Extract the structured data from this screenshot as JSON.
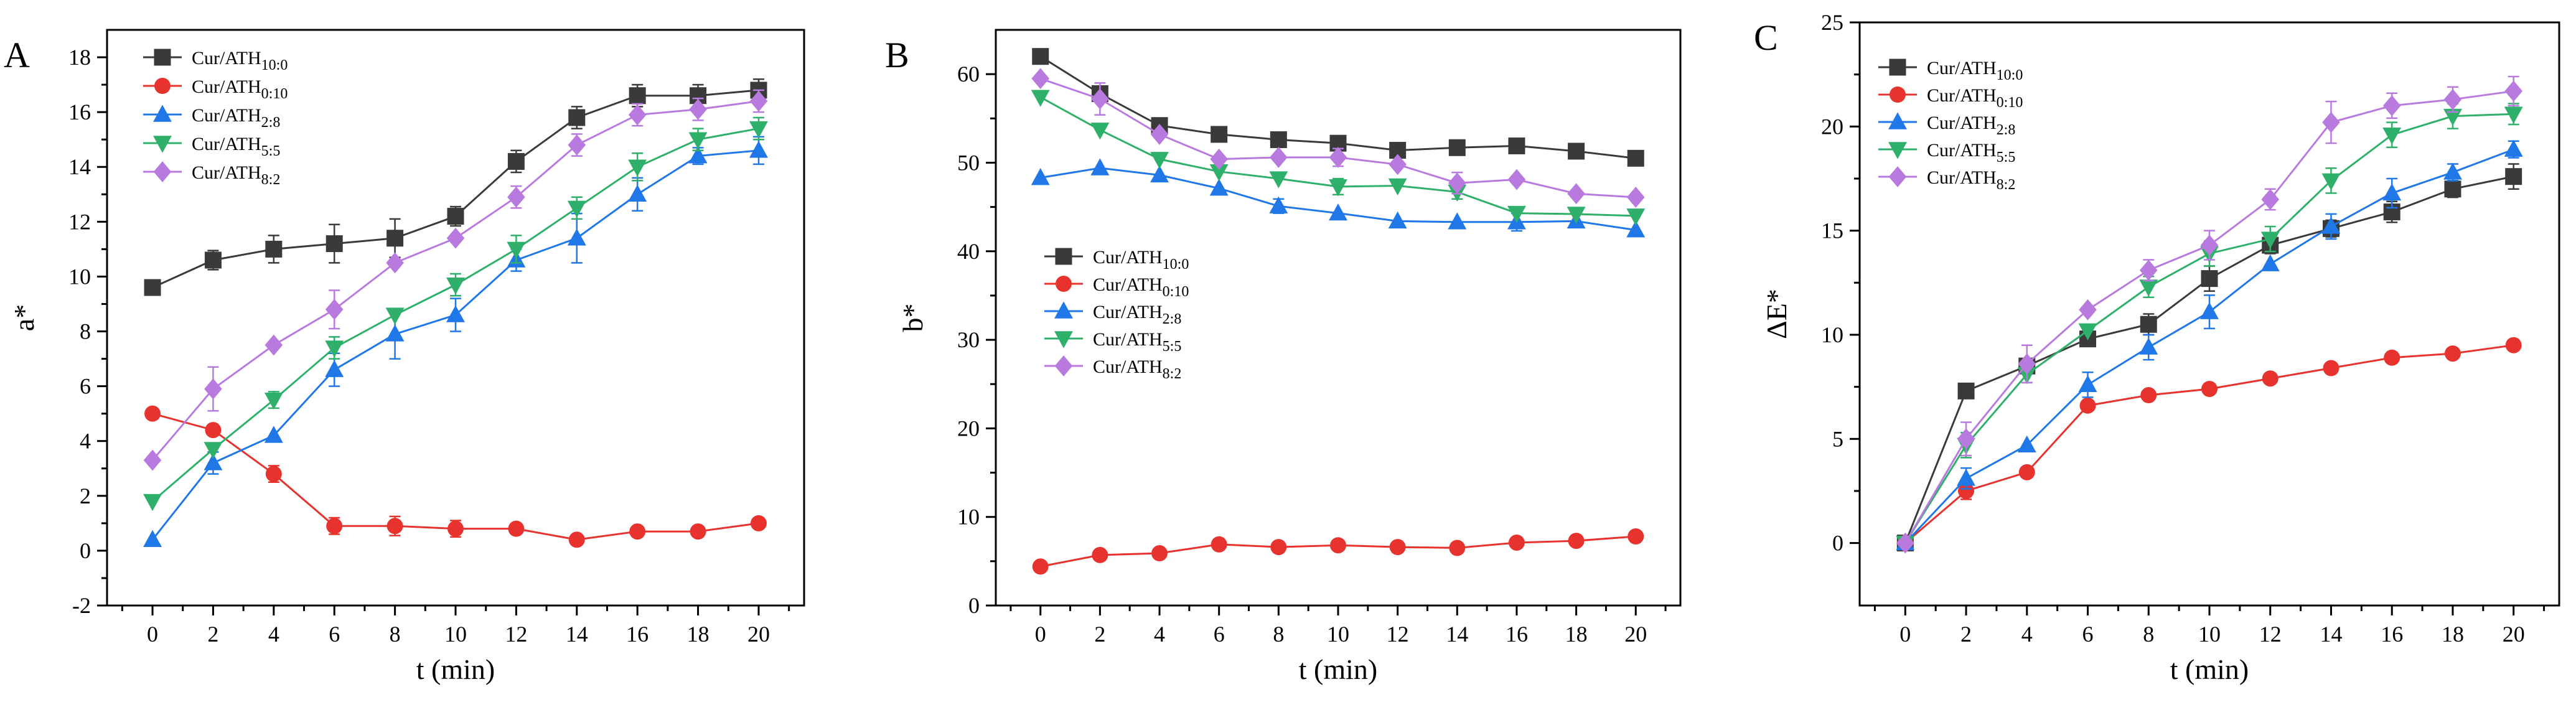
{
  "colors": {
    "Cur/ATH10:0": "#3a3a3a",
    "Cur/ATH0:10": "#e8322e",
    "Cur/ATH2:8": "#1f77e8",
    "Cur/ATH5:5": "#2eb06a",
    "Cur/ATH8:2": "#b97ae0"
  },
  "legend": [
    {
      "base": "Cur/ATH",
      "sub": "10:0"
    },
    {
      "base": "Cur/ATH",
      "sub": "0:10"
    },
    {
      "base": "Cur/ATH",
      "sub": "2:8"
    },
    {
      "base": "Cur/ATH",
      "sub": "5:5"
    },
    {
      "base": "Cur/ATH",
      "sub": "8:2"
    }
  ],
  "chart_data": [
    {
      "type": "line",
      "panel": "A",
      "xlabel": "t (min)",
      "ylabel": "a*",
      "x": [
        0,
        2,
        4,
        6,
        8,
        10,
        12,
        14,
        16,
        18,
        20
      ],
      "xlim": [
        -1.5,
        21.5
      ],
      "ylim": [
        -2,
        19
      ],
      "yticks": [
        -2,
        0,
        2,
        4,
        6,
        8,
        10,
        12,
        14,
        16,
        18
      ],
      "legend_position": "top-left",
      "series": [
        {
          "name": "Cur/ATH10:0",
          "marker": "square",
          "values": [
            9.6,
            10.6,
            11.0,
            11.2,
            11.4,
            12.2,
            14.2,
            15.8,
            16.6,
            16.6,
            16.8
          ],
          "errors": [
            0,
            0.35,
            0.5,
            0.7,
            0.7,
            0.35,
            0.4,
            0.4,
            0.4,
            0.4,
            0.4
          ]
        },
        {
          "name": "Cur/ATH0:10",
          "marker": "circle",
          "values": [
            5.0,
            4.4,
            2.8,
            0.9,
            0.9,
            0.8,
            0.8,
            0.4,
            0.7,
            0.7,
            1.0
          ],
          "errors": [
            0,
            0,
            0.3,
            0.3,
            0.35,
            0.3,
            0,
            0,
            0,
            0,
            0
          ]
        },
        {
          "name": "Cur/ATH2:8",
          "marker": "triangle",
          "values": [
            0.4,
            3.2,
            4.2,
            6.6,
            7.9,
            8.6,
            10.6,
            11.4,
            13.0,
            14.4,
            14.6
          ],
          "errors": [
            0,
            0.4,
            0,
            0.6,
            0.9,
            0.6,
            0.4,
            0.9,
            0.6,
            0.3,
            0.5
          ]
        },
        {
          "name": "Cur/ATH5:5",
          "marker": "triangle-down",
          "values": [
            1.8,
            3.7,
            5.5,
            7.4,
            8.6,
            9.7,
            11.0,
            12.5,
            14.0,
            15.0,
            15.4
          ],
          "errors": [
            0,
            0,
            0.3,
            0.4,
            0,
            0.4,
            0.5,
            0.4,
            0.5,
            0.4,
            0.4
          ]
        },
        {
          "name": "Cur/ATH8:2",
          "marker": "diamond",
          "values": [
            3.3,
            5.9,
            7.5,
            8.8,
            10.5,
            11.4,
            12.9,
            14.8,
            15.9,
            16.1,
            16.4
          ],
          "errors": [
            0,
            0.8,
            0,
            0.7,
            0,
            0,
            0.4,
            0.4,
            0.4,
            0.4,
            0.4
          ]
        }
      ]
    },
    {
      "type": "line",
      "panel": "B",
      "xlabel": "t (min)",
      "ylabel": "b*",
      "x": [
        0,
        2,
        4,
        6,
        8,
        10,
        12,
        14,
        16,
        18,
        20
      ],
      "xlim": [
        -1.5,
        21.5
      ],
      "ylim": [
        0,
        65
      ],
      "yticks": [
        0,
        10,
        20,
        30,
        40,
        50,
        60
      ],
      "legend_position": "center-left",
      "series": [
        {
          "name": "Cur/ATH10:0",
          "marker": "square",
          "values": [
            62.0,
            57.8,
            54.2,
            53.2,
            52.6,
            52.2,
            51.4,
            51.7,
            51.9,
            51.3,
            50.5
          ],
          "errors": [
            0,
            0.8,
            0,
            0,
            0,
            0,
            0,
            0,
            0,
            0,
            0
          ]
        },
        {
          "name": "Cur/ATH0:10",
          "marker": "circle",
          "values": [
            4.4,
            5.7,
            5.9,
            6.9,
            6.6,
            6.8,
            6.6,
            6.5,
            7.1,
            7.3,
            7.8
          ],
          "errors": [
            0,
            0,
            0,
            0,
            0,
            0,
            0,
            0,
            0,
            0,
            0
          ]
        },
        {
          "name": "Cur/ATH2:8",
          "marker": "triangle",
          "values": [
            48.3,
            49.4,
            48.6,
            47.1,
            45.1,
            44.3,
            43.4,
            43.3,
            43.3,
            43.4,
            42.4
          ],
          "errors": [
            0,
            0,
            0,
            0,
            0.8,
            0,
            0,
            0,
            1.0,
            0,
            0
          ]
        },
        {
          "name": "Cur/ATH5:5",
          "marker": "triangle-down",
          "values": [
            57.4,
            53.7,
            50.4,
            49.0,
            48.2,
            47.3,
            47.4,
            46.7,
            44.3,
            44.2,
            44.0
          ],
          "errors": [
            0,
            0,
            0,
            0,
            0,
            0.9,
            0,
            0.8,
            0,
            0,
            0
          ]
        },
        {
          "name": "Cur/ATH8:2",
          "marker": "diamond",
          "values": [
            59.5,
            57.2,
            53.2,
            50.4,
            50.6,
            50.6,
            49.8,
            47.7,
            48.1,
            46.5,
            46.1
          ],
          "errors": [
            0,
            1.8,
            0,
            0,
            0,
            1.0,
            0,
            1.2,
            0,
            0,
            0
          ]
        }
      ]
    },
    {
      "type": "line",
      "panel": "C",
      "xlabel": "t (min)",
      "ylabel": "ΔE*",
      "x": [
        0,
        2,
        4,
        6,
        8,
        10,
        12,
        14,
        16,
        18,
        20
      ],
      "xlim": [
        -1.5,
        21.5
      ],
      "ylim": [
        -3,
        25
      ],
      "yticks": [
        0,
        5,
        10,
        15,
        20,
        25
      ],
      "legend_position": "top-left",
      "series": [
        {
          "name": "Cur/ATH10:0",
          "marker": "square",
          "values": [
            0,
            7.3,
            8.5,
            9.8,
            10.5,
            12.7,
            14.3,
            15.1,
            15.9,
            17.0,
            17.6
          ],
          "errors": [
            0,
            0,
            0,
            0,
            0.5,
            0.6,
            0.4,
            0.4,
            0.5,
            0.4,
            0.6
          ]
        },
        {
          "name": "Cur/ATH0:10",
          "marker": "circle",
          "values": [
            0,
            2.5,
            3.4,
            6.6,
            7.1,
            7.4,
            7.9,
            8.4,
            8.9,
            9.1,
            9.5
          ],
          "errors": [
            0,
            0.4,
            0,
            0,
            0,
            0,
            0,
            0,
            0,
            0,
            0
          ]
        },
        {
          "name": "Cur/ATH2:8",
          "marker": "triangle",
          "values": [
            0,
            3.1,
            4.7,
            7.6,
            9.4,
            11.1,
            13.4,
            15.2,
            16.8,
            17.8,
            18.9
          ],
          "errors": [
            0,
            0.5,
            0,
            0.6,
            0.6,
            0.8,
            0,
            0.6,
            0.7,
            0.4,
            0.4
          ]
        },
        {
          "name": "Cur/ATH5:5",
          "marker": "triangle-down",
          "values": [
            0,
            4.7,
            8.1,
            10.2,
            12.3,
            13.9,
            14.6,
            17.4,
            19.6,
            20.5,
            20.6
          ],
          "errors": [
            0,
            0.6,
            0.4,
            0,
            0.5,
            0.6,
            0.6,
            0.6,
            0.6,
            0.6,
            0.5
          ]
        },
        {
          "name": "Cur/ATH8:2",
          "marker": "diamond",
          "values": [
            0,
            5.0,
            8.6,
            11.2,
            13.1,
            14.3,
            16.5,
            20.2,
            21.0,
            21.3,
            21.7
          ],
          "errors": [
            0,
            0.8,
            0.9,
            0,
            0.5,
            0.7,
            0.5,
            1.0,
            0.6,
            0.6,
            0.7
          ]
        }
      ]
    }
  ],
  "panels": [
    {
      "letter": "A"
    },
    {
      "letter": "B"
    },
    {
      "letter": "C"
    }
  ]
}
